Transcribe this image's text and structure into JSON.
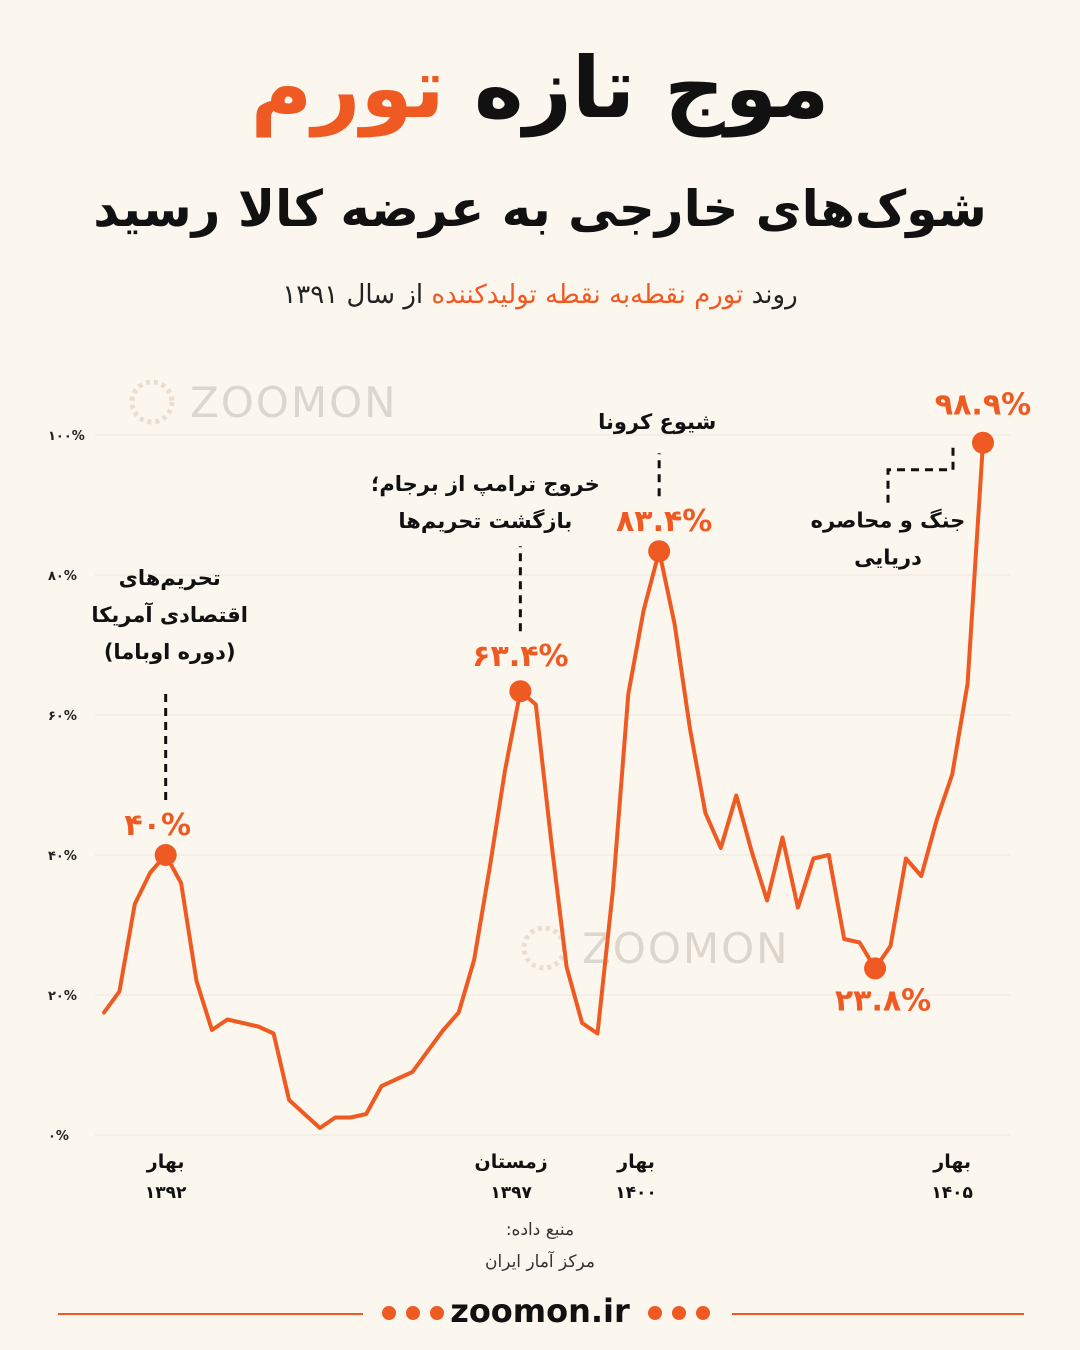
{
  "header": {
    "title_part1": "موج تازه",
    "title_accent": "تورم",
    "subtitle": "شوک‌های خارجی به عرضه کالا رسید",
    "caption_part1": "روند",
    "caption_accent": "تورم نقطه‌به نقطه تولیدکننده",
    "caption_part2": "از سال ۱۳۹۱"
  },
  "watermark": "ZOOMON",
  "colors": {
    "accent": "#ef5a22",
    "text": "#111111",
    "background": "#fbf6ee",
    "grid": "#ece6dc"
  },
  "chart_data": {
    "type": "line",
    "title": "",
    "xlabel": "",
    "ylabel": "",
    "ylim": [
      0,
      100
    ],
    "y_ticks": [
      {
        "value": 0,
        "label": "۰%"
      },
      {
        "value": 20,
        "label": "۲۰%"
      },
      {
        "value": 40,
        "label": "۴۰%"
      },
      {
        "value": 60,
        "label": "۶۰%"
      },
      {
        "value": 80,
        "label": "۸۰%"
      },
      {
        "value": 100,
        "label": "۱۰۰%"
      }
    ],
    "grid": true,
    "x_range": [
      0,
      56
    ],
    "x_ticks": [
      {
        "x": 4,
        "season": "بهار",
        "year": "۱۳۹۲"
      },
      {
        "x": 26.4,
        "season": "زمستان",
        "year": "۱۳۹۷"
      },
      {
        "x": 34.5,
        "season": "بهار",
        "year": "۱۴۰۰"
      },
      {
        "x": 55,
        "season": "بهار",
        "year": "۱۴۰۵"
      }
    ],
    "series": [
      {
        "values": [
          [
            0,
            17.5
          ],
          [
            1,
            20.5
          ],
          [
            2,
            33
          ],
          [
            3,
            37.5
          ],
          [
            4,
            40
          ],
          [
            5,
            36
          ],
          [
            6,
            22
          ],
          [
            7,
            15
          ],
          [
            8,
            16.5
          ],
          [
            9,
            16
          ],
          [
            10,
            15.5
          ],
          [
            11,
            14.5
          ],
          [
            12,
            5
          ],
          [
            13,
            3
          ],
          [
            14,
            1
          ],
          [
            15,
            2.5
          ],
          [
            16,
            2.5
          ],
          [
            17,
            3
          ],
          [
            18,
            7
          ],
          [
            19,
            8
          ],
          [
            20,
            9
          ],
          [
            21,
            12
          ],
          [
            22,
            15
          ],
          [
            23,
            17.5
          ],
          [
            24,
            25
          ],
          [
            25,
            38
          ],
          [
            26,
            52
          ],
          [
            27,
            63.4
          ],
          [
            28,
            61.5
          ],
          [
            29,
            42
          ],
          [
            30,
            24
          ],
          [
            31,
            16
          ],
          [
            32,
            14.5
          ],
          [
            33,
            35
          ],
          [
            34,
            63
          ],
          [
            35,
            75
          ],
          [
            36,
            83.4
          ],
          [
            37,
            73
          ],
          [
            38,
            58
          ],
          [
            39,
            46
          ],
          [
            40,
            41
          ],
          [
            41,
            48.5
          ],
          [
            42,
            40.5
          ],
          [
            43,
            33.5
          ],
          [
            44,
            42.5
          ],
          [
            45,
            32.5
          ],
          [
            46,
            39.5
          ],
          [
            47,
            40
          ],
          [
            48,
            28
          ],
          [
            49,
            27.5
          ],
          [
            50,
            23.8
          ],
          [
            51,
            27
          ],
          [
            52,
            39.5
          ],
          [
            53,
            37
          ],
          [
            54,
            45
          ],
          [
            55,
            51.5
          ],
          [
            56,
            64.5
          ],
          [
            57,
            98.9
          ]
        ]
      }
    ],
    "annotations": [
      {
        "x": 4,
        "y": 40,
        "label": "۴۰%",
        "text_lines": [
          "تحریم‌های",
          "اقتصادی آمریکا",
          "(دوره اوباما)"
        ]
      },
      {
        "x": 27,
        "y": 63.4,
        "label": "۶۳.۴%",
        "text_lines": [
          "خروج ترامپ از برجام؛",
          "بازگشت تحریم‌ها"
        ]
      },
      {
        "x": 36,
        "y": 83.4,
        "label": "۸۳.۴%",
        "text_lines": [
          "شیوع کرونا"
        ]
      },
      {
        "x": 50,
        "y": 23.8,
        "label": "۲۳.۸%",
        "text_lines": []
      },
      {
        "x": 57,
        "y": 98.9,
        "label": "۹۸.۹%",
        "text_lines": [
          "جنگ و محاصره",
          "دریایی"
        ]
      }
    ]
  },
  "source": {
    "label": "منبع داده:",
    "name": "مرکز آمار ایران"
  },
  "footer": {
    "site": "zoomon.ir"
  }
}
